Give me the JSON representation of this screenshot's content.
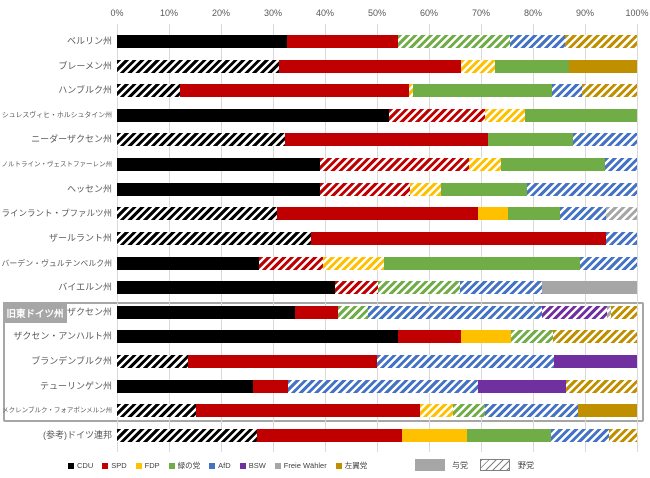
{
  "east_group_label": "旧東ドイツ州",
  "legend": {
    "parties": [
      {
        "key": "CDU",
        "label": "CDU",
        "color": "#000000"
      },
      {
        "key": "SPD",
        "label": "SPD",
        "color": "#c00000"
      },
      {
        "key": "FDP",
        "label": "FDP",
        "color": "#ffc000"
      },
      {
        "key": "Greens",
        "label": "緑の党",
        "color": "#70ad47"
      },
      {
        "key": "AfD",
        "label": "AfD",
        "color": "#4472c4"
      },
      {
        "key": "BSW",
        "label": "BSW",
        "color": "#7030a0"
      },
      {
        "key": "FW",
        "label": "Freie Wähler",
        "color": "#a6a6a6"
      },
      {
        "key": "Left",
        "label": "左翼党",
        "color": "#bf8f00"
      }
    ],
    "ruling_label": "与党",
    "opposition_label": "野党"
  },
  "chart_data": {
    "type": "bar",
    "stacked": true,
    "orientation": "horizontal",
    "x_range": [
      0,
      100
    ],
    "x_ticks": [
      "0%",
      "10%",
      "20%",
      "30%",
      "40%",
      "50%",
      "60%",
      "70%",
      "80%",
      "90%",
      "100%"
    ],
    "grid": true,
    "pattern_encoding": {
      "solid": "与党",
      "hatched": "野党"
    },
    "east_group": {
      "label": "旧東ドイツ州",
      "first_row": 11,
      "last_row": 15
    },
    "rows": [
      {
        "state": "ベルリン州",
        "east": false,
        "segments": [
          {
            "party": "CDU",
            "value": 32.7,
            "status": "ruling"
          },
          {
            "party": "SPD",
            "value": 21.4,
            "status": "ruling"
          },
          {
            "party": "Greens",
            "value": 21.4,
            "status": "opposition"
          },
          {
            "party": "AfD",
            "value": 10.7,
            "status": "opposition"
          },
          {
            "party": "Left",
            "value": 13.8,
            "status": "opposition"
          }
        ]
      },
      {
        "state": "ブレーメン州",
        "east": false,
        "segments": [
          {
            "party": "CDU",
            "value": 31.2,
            "status": "opposition"
          },
          {
            "party": "SPD",
            "value": 35.1,
            "status": "ruling"
          },
          {
            "party": "FDP",
            "value": 6.5,
            "status": "opposition"
          },
          {
            "party": "Greens",
            "value": 14.3,
            "status": "ruling"
          },
          {
            "party": "Left",
            "value": 13.0,
            "status": "ruling"
          }
        ]
      },
      {
        "state": "ハンブルク州",
        "east": false,
        "segments": [
          {
            "party": "CDU",
            "value": 12.2,
            "status": "opposition"
          },
          {
            "party": "SPD",
            "value": 43.9,
            "status": "ruling"
          },
          {
            "party": "FDP",
            "value": 0.8,
            "status": "opposition"
          },
          {
            "party": "Greens",
            "value": 26.8,
            "status": "ruling"
          },
          {
            "party": "AfD",
            "value": 5.7,
            "status": "opposition"
          },
          {
            "party": "Left",
            "value": 10.6,
            "status": "opposition"
          }
        ]
      },
      {
        "state": "シュレスヴィヒ・ホルシュタイン州",
        "east": false,
        "segments": [
          {
            "party": "CDU",
            "value": 52.3,
            "status": "ruling"
          },
          {
            "party": "SPD",
            "value": 18.5,
            "status": "opposition"
          },
          {
            "party": "FDP",
            "value": 7.7,
            "status": "opposition"
          },
          {
            "party": "Greens",
            "value": 21.5,
            "status": "ruling"
          }
        ]
      },
      {
        "state": "ニーダーザクセン州",
        "east": false,
        "segments": [
          {
            "party": "CDU",
            "value": 32.2,
            "status": "opposition"
          },
          {
            "party": "SPD",
            "value": 39.0,
            "status": "ruling"
          },
          {
            "party": "Greens",
            "value": 16.4,
            "status": "ruling"
          },
          {
            "party": "AfD",
            "value": 12.3,
            "status": "opposition"
          }
        ]
      },
      {
        "state": "ノルトライン・ヴェストファーレン州",
        "east": false,
        "segments": [
          {
            "party": "CDU",
            "value": 39.0,
            "status": "ruling"
          },
          {
            "party": "SPD",
            "value": 28.7,
            "status": "opposition"
          },
          {
            "party": "FDP",
            "value": 6.2,
            "status": "opposition"
          },
          {
            "party": "Greens",
            "value": 20.0,
            "status": "ruling"
          },
          {
            "party": "AfD",
            "value": 6.2,
            "status": "opposition"
          }
        ]
      },
      {
        "state": "ヘッセン州",
        "east": false,
        "segments": [
          {
            "party": "CDU",
            "value": 39.1,
            "status": "ruling"
          },
          {
            "party": "SPD",
            "value": 17.3,
            "status": "opposition"
          },
          {
            "party": "FDP",
            "value": 6.0,
            "status": "opposition"
          },
          {
            "party": "Greens",
            "value": 16.5,
            "status": "ruling"
          },
          {
            "party": "AfD",
            "value": 21.1,
            "status": "opposition"
          }
        ]
      },
      {
        "state": "ラインラント・プファルツ州",
        "east": false,
        "segments": [
          {
            "party": "CDU",
            "value": 30.7,
            "status": "opposition"
          },
          {
            "party": "SPD",
            "value": 38.6,
            "status": "ruling"
          },
          {
            "party": "FDP",
            "value": 5.9,
            "status": "ruling"
          },
          {
            "party": "Greens",
            "value": 9.9,
            "status": "ruling"
          },
          {
            "party": "AfD",
            "value": 8.9,
            "status": "opposition"
          },
          {
            "party": "FW",
            "value": 5.9,
            "status": "opposition"
          }
        ]
      },
      {
        "state": "ザールラント州",
        "east": false,
        "segments": [
          {
            "party": "CDU",
            "value": 37.3,
            "status": "opposition"
          },
          {
            "party": "SPD",
            "value": 56.9,
            "status": "ruling"
          },
          {
            "party": "AfD",
            "value": 5.9,
            "status": "opposition"
          }
        ]
      },
      {
        "state": "バーデン・ヴュルテンベルク州",
        "east": false,
        "segments": [
          {
            "party": "CDU",
            "value": 27.3,
            "status": "ruling"
          },
          {
            "party": "SPD",
            "value": 12.3,
            "status": "opposition"
          },
          {
            "party": "FDP",
            "value": 11.7,
            "status": "opposition"
          },
          {
            "party": "Greens",
            "value": 37.7,
            "status": "ruling"
          },
          {
            "party": "AfD",
            "value": 11.0,
            "status": "opposition"
          }
        ]
      },
      {
        "state": "バイエルン州",
        "east": false,
        "segments": [
          {
            "party": "CDU",
            "value": 41.9,
            "status": "ruling"
          },
          {
            "party": "SPD",
            "value": 8.4,
            "status": "opposition"
          },
          {
            "party": "Greens",
            "value": 15.8,
            "status": "opposition"
          },
          {
            "party": "AfD",
            "value": 15.8,
            "status": "opposition"
          },
          {
            "party": "FW",
            "value": 18.2,
            "status": "ruling"
          }
        ]
      },
      {
        "state": "ザクセン州",
        "east": true,
        "segments": [
          {
            "party": "CDU",
            "value": 34.2,
            "status": "ruling"
          },
          {
            "party": "SPD",
            "value": 8.3,
            "status": "ruling"
          },
          {
            "party": "Greens",
            "value": 5.8,
            "status": "opposition"
          },
          {
            "party": "AfD",
            "value": 33.3,
            "status": "opposition"
          },
          {
            "party": "BSW",
            "value": 12.5,
            "status": "opposition"
          },
          {
            "party": "FW",
            "value": 0.8,
            "status": "opposition"
          },
          {
            "party": "Left",
            "value": 5.0,
            "status": "opposition"
          }
        ]
      },
      {
        "state": "ザクセン・アンハルト州",
        "east": true,
        "segments": [
          {
            "party": "CDU",
            "value": 54.1,
            "status": "ruling"
          },
          {
            "party": "SPD",
            "value": 12.2,
            "status": "ruling"
          },
          {
            "party": "FDP",
            "value": 9.5,
            "status": "ruling"
          },
          {
            "party": "Greens",
            "value": 8.1,
            "status": "opposition"
          },
          {
            "party": "Left",
            "value": 16.2,
            "status": "opposition"
          }
        ]
      },
      {
        "state": "ブランデンブルク州",
        "east": true,
        "segments": [
          {
            "party": "CDU",
            "value": 13.6,
            "status": "opposition"
          },
          {
            "party": "SPD",
            "value": 36.4,
            "status": "ruling"
          },
          {
            "party": "AfD",
            "value": 34.1,
            "status": "opposition"
          },
          {
            "party": "BSW",
            "value": 15.9,
            "status": "ruling"
          }
        ]
      },
      {
        "state": "テューリンゲン州",
        "east": true,
        "segments": [
          {
            "party": "CDU",
            "value": 26.1,
            "status": "ruling"
          },
          {
            "party": "SPD",
            "value": 6.8,
            "status": "ruling"
          },
          {
            "party": "AfD",
            "value": 36.4,
            "status": "opposition"
          },
          {
            "party": "BSW",
            "value": 17.0,
            "status": "ruling"
          },
          {
            "party": "Left",
            "value": 13.6,
            "status": "opposition"
          }
        ]
      },
      {
        "state": "メクレンブルク・フォアポンメルン州",
        "east": true,
        "segments": [
          {
            "party": "CDU",
            "value": 15.2,
            "status": "opposition"
          },
          {
            "party": "SPD",
            "value": 43.0,
            "status": "ruling"
          },
          {
            "party": "FDP",
            "value": 6.3,
            "status": "opposition"
          },
          {
            "party": "Greens",
            "value": 6.3,
            "status": "opposition"
          },
          {
            "party": "AfD",
            "value": 17.7,
            "status": "opposition"
          },
          {
            "party": "Left",
            "value": 11.4,
            "status": "ruling"
          }
        ]
      },
      {
        "state": "(参考)ドイツ連邦",
        "east": false,
        "segments": [
          {
            "party": "CDU",
            "value": 26.8,
            "status": "opposition"
          },
          {
            "party": "SPD",
            "value": 28.0,
            "status": "ruling"
          },
          {
            "party": "FDP",
            "value": 12.5,
            "status": "ruling"
          },
          {
            "party": "Greens",
            "value": 16.0,
            "status": "ruling"
          },
          {
            "party": "AfD",
            "value": 11.3,
            "status": "opposition"
          },
          {
            "party": "Left",
            "value": 5.3,
            "status": "opposition"
          }
        ]
      }
    ]
  }
}
